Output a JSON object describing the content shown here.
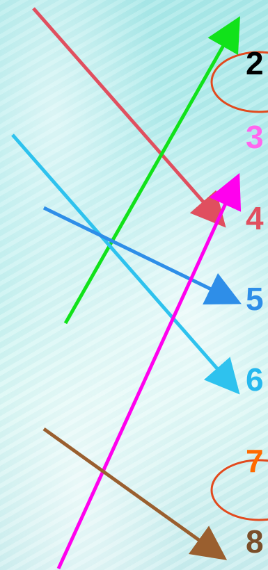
{
  "labels": [
    {
      "id": "label-2",
      "text": "2",
      "color": "#000000"
    },
    {
      "id": "label-3",
      "text": "3",
      "color": "#ff66ee"
    },
    {
      "id": "label-4",
      "text": "4",
      "color": "#e04f5f"
    },
    {
      "id": "label-5",
      "text": "5",
      "color": "#2e8ee8"
    },
    {
      "id": "label-6",
      "text": "6",
      "color": "#26b8ee"
    },
    {
      "id": "label-7",
      "text": "7",
      "color": "#ff6a00"
    },
    {
      "id": "label-8",
      "text": "8",
      "color": "#7a4f2a"
    }
  ],
  "arrows": [
    {
      "id": "arrow-red",
      "color": "#e04f5f"
    },
    {
      "id": "arrow-green",
      "color": "#11e21a"
    },
    {
      "id": "arrow-cyan",
      "color": "#2ec2ee"
    },
    {
      "id": "arrow-blue",
      "color": "#2e8ee8"
    },
    {
      "id": "arrow-magenta",
      "color": "#ff00ee"
    },
    {
      "id": "arrow-brown",
      "color": "#9a5f2f"
    }
  ],
  "ellipses": [
    {
      "id": "ellipse-top",
      "color": "#e24a1e"
    },
    {
      "id": "ellipse-bottom",
      "color": "#e24a1e"
    }
  ]
}
